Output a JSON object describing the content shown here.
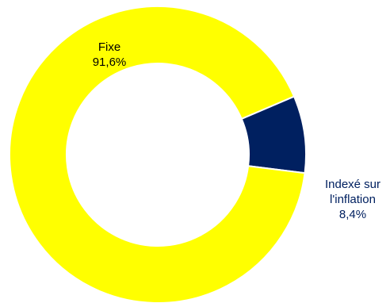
{
  "chart_data": {
    "type": "pie",
    "subtype": "doughnut",
    "slices": [
      {
        "name": "Fixe",
        "label": "Fixe",
        "value": 91.6,
        "value_label": "91,6%",
        "color": "#FFFF00"
      },
      {
        "name": "Indexé sur l'inflation",
        "label_line1": "Indexé sur",
        "label_line2": "l'inflation",
        "value": 8.4,
        "value_label": "8,4%",
        "color": "#002060"
      }
    ],
    "legend": "none"
  }
}
